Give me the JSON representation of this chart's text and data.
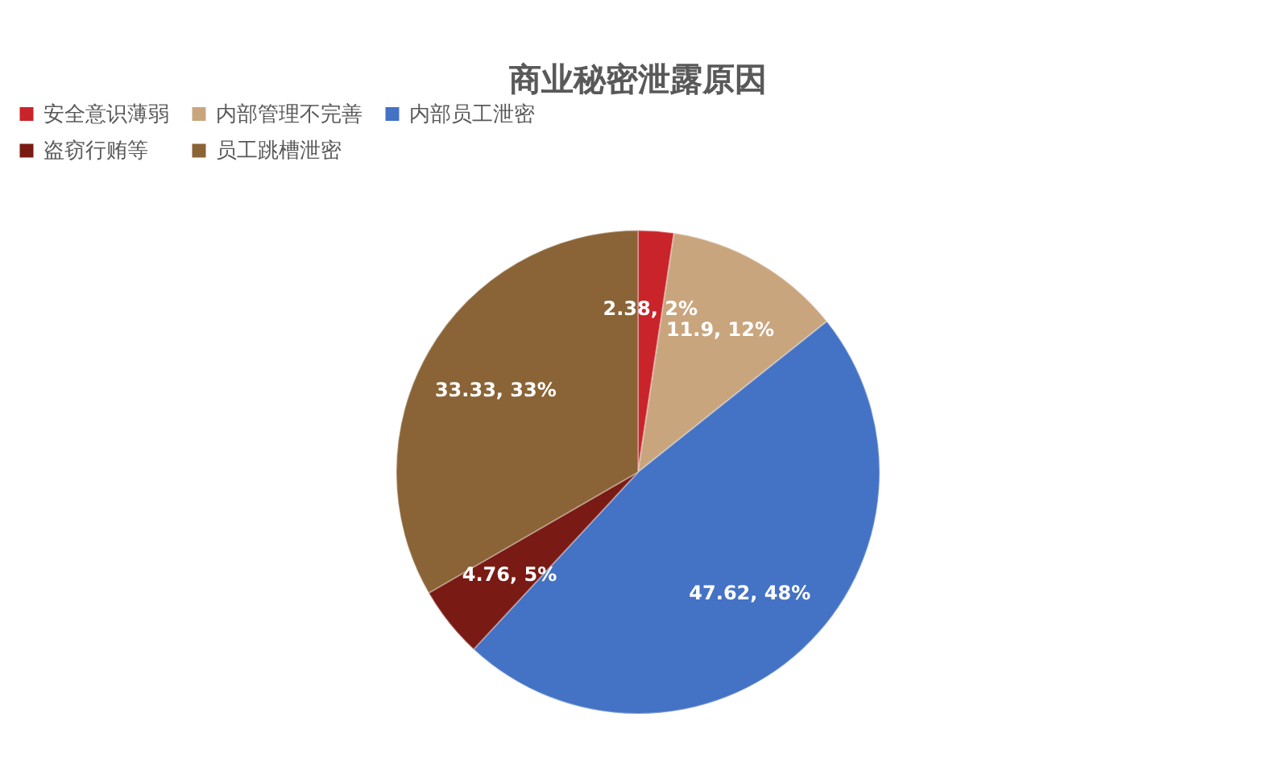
{
  "chart_data": {
    "type": "pie",
    "title": "商业秘密泄露原因",
    "categories": [
      "安全意识薄弱",
      "内部管理不完善",
      "内部员工泄密",
      "盗窃行贿等",
      "员工跳槽泄密"
    ],
    "values": [
      2.38,
      11.9,
      47.62,
      4.76,
      33.33
    ],
    "colors": [
      "#c9242a",
      "#c9a57e",
      "#4472c4",
      "#7a1a14",
      "#8a6336"
    ],
    "value_labels": [
      "2.38, 2%",
      "11.9, 12%",
      "47.62, 48%",
      "4.76, 5%",
      "33.33, 33%"
    ],
    "legend": "top"
  }
}
